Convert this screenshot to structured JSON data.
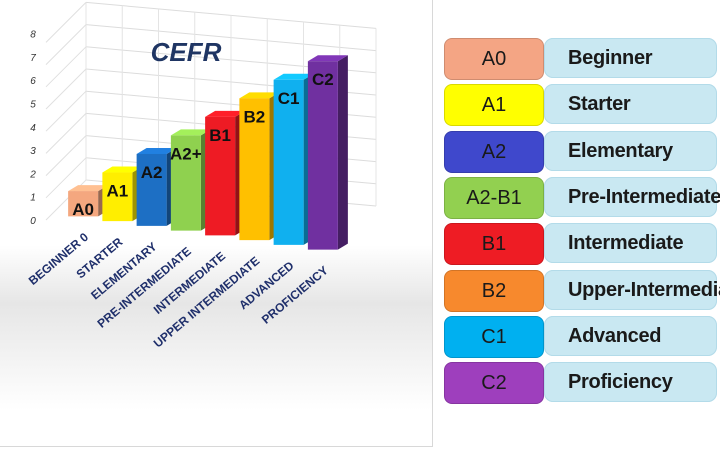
{
  "chart_data": {
    "type": "bar",
    "title": "CEFR",
    "categories": [
      "BEGINNER 0",
      "STARTER",
      "ELEMENTARY",
      "PRE-INTERMEDIATE",
      "INTERMEDIATE",
      "UPPER INTERMEDIATE",
      "ADVANCED",
      "PROFICIENCY"
    ],
    "values": [
      1,
      2,
      3,
      4,
      5,
      6,
      7,
      8
    ],
    "bar_labels": [
      "A0",
      "A1",
      "A2",
      "A2+",
      "B1",
      "B2",
      "C1",
      "C2"
    ],
    "bar_colors": [
      "#f4a77f",
      "#ffee00",
      "#1d6fc4",
      "#8fd14f",
      "#ee1b24",
      "#ffc000",
      "#10b0ef",
      "#7030a0"
    ],
    "y_ticks": [
      "0",
      "1",
      "2",
      "3",
      "4",
      "5",
      "6",
      "7",
      "8"
    ],
    "ylim": [
      0,
      8
    ],
    "grid": true
  },
  "legend": {
    "items": [
      {
        "code": "A0",
        "name": "Beginner",
        "color": "#f4a584"
      },
      {
        "code": "A1",
        "name": "Starter",
        "color": "#ffff00"
      },
      {
        "code": "A2",
        "name": "Elementary",
        "color": "#3f48cc"
      },
      {
        "code": "A2-B1",
        "name": "Pre-Intermediate",
        "color": "#92d050"
      },
      {
        "code": "B1",
        "name": "Intermediate",
        "color": "#ee1c24"
      },
      {
        "code": "B2",
        "name": "Upper-Intermediate",
        "color": "#f7892d"
      },
      {
        "code": "C1",
        "name": "Advanced",
        "color": "#00b0f0"
      },
      {
        "code": "C2",
        "name": "Proficiency",
        "color": "#9e3fbd"
      }
    ]
  }
}
